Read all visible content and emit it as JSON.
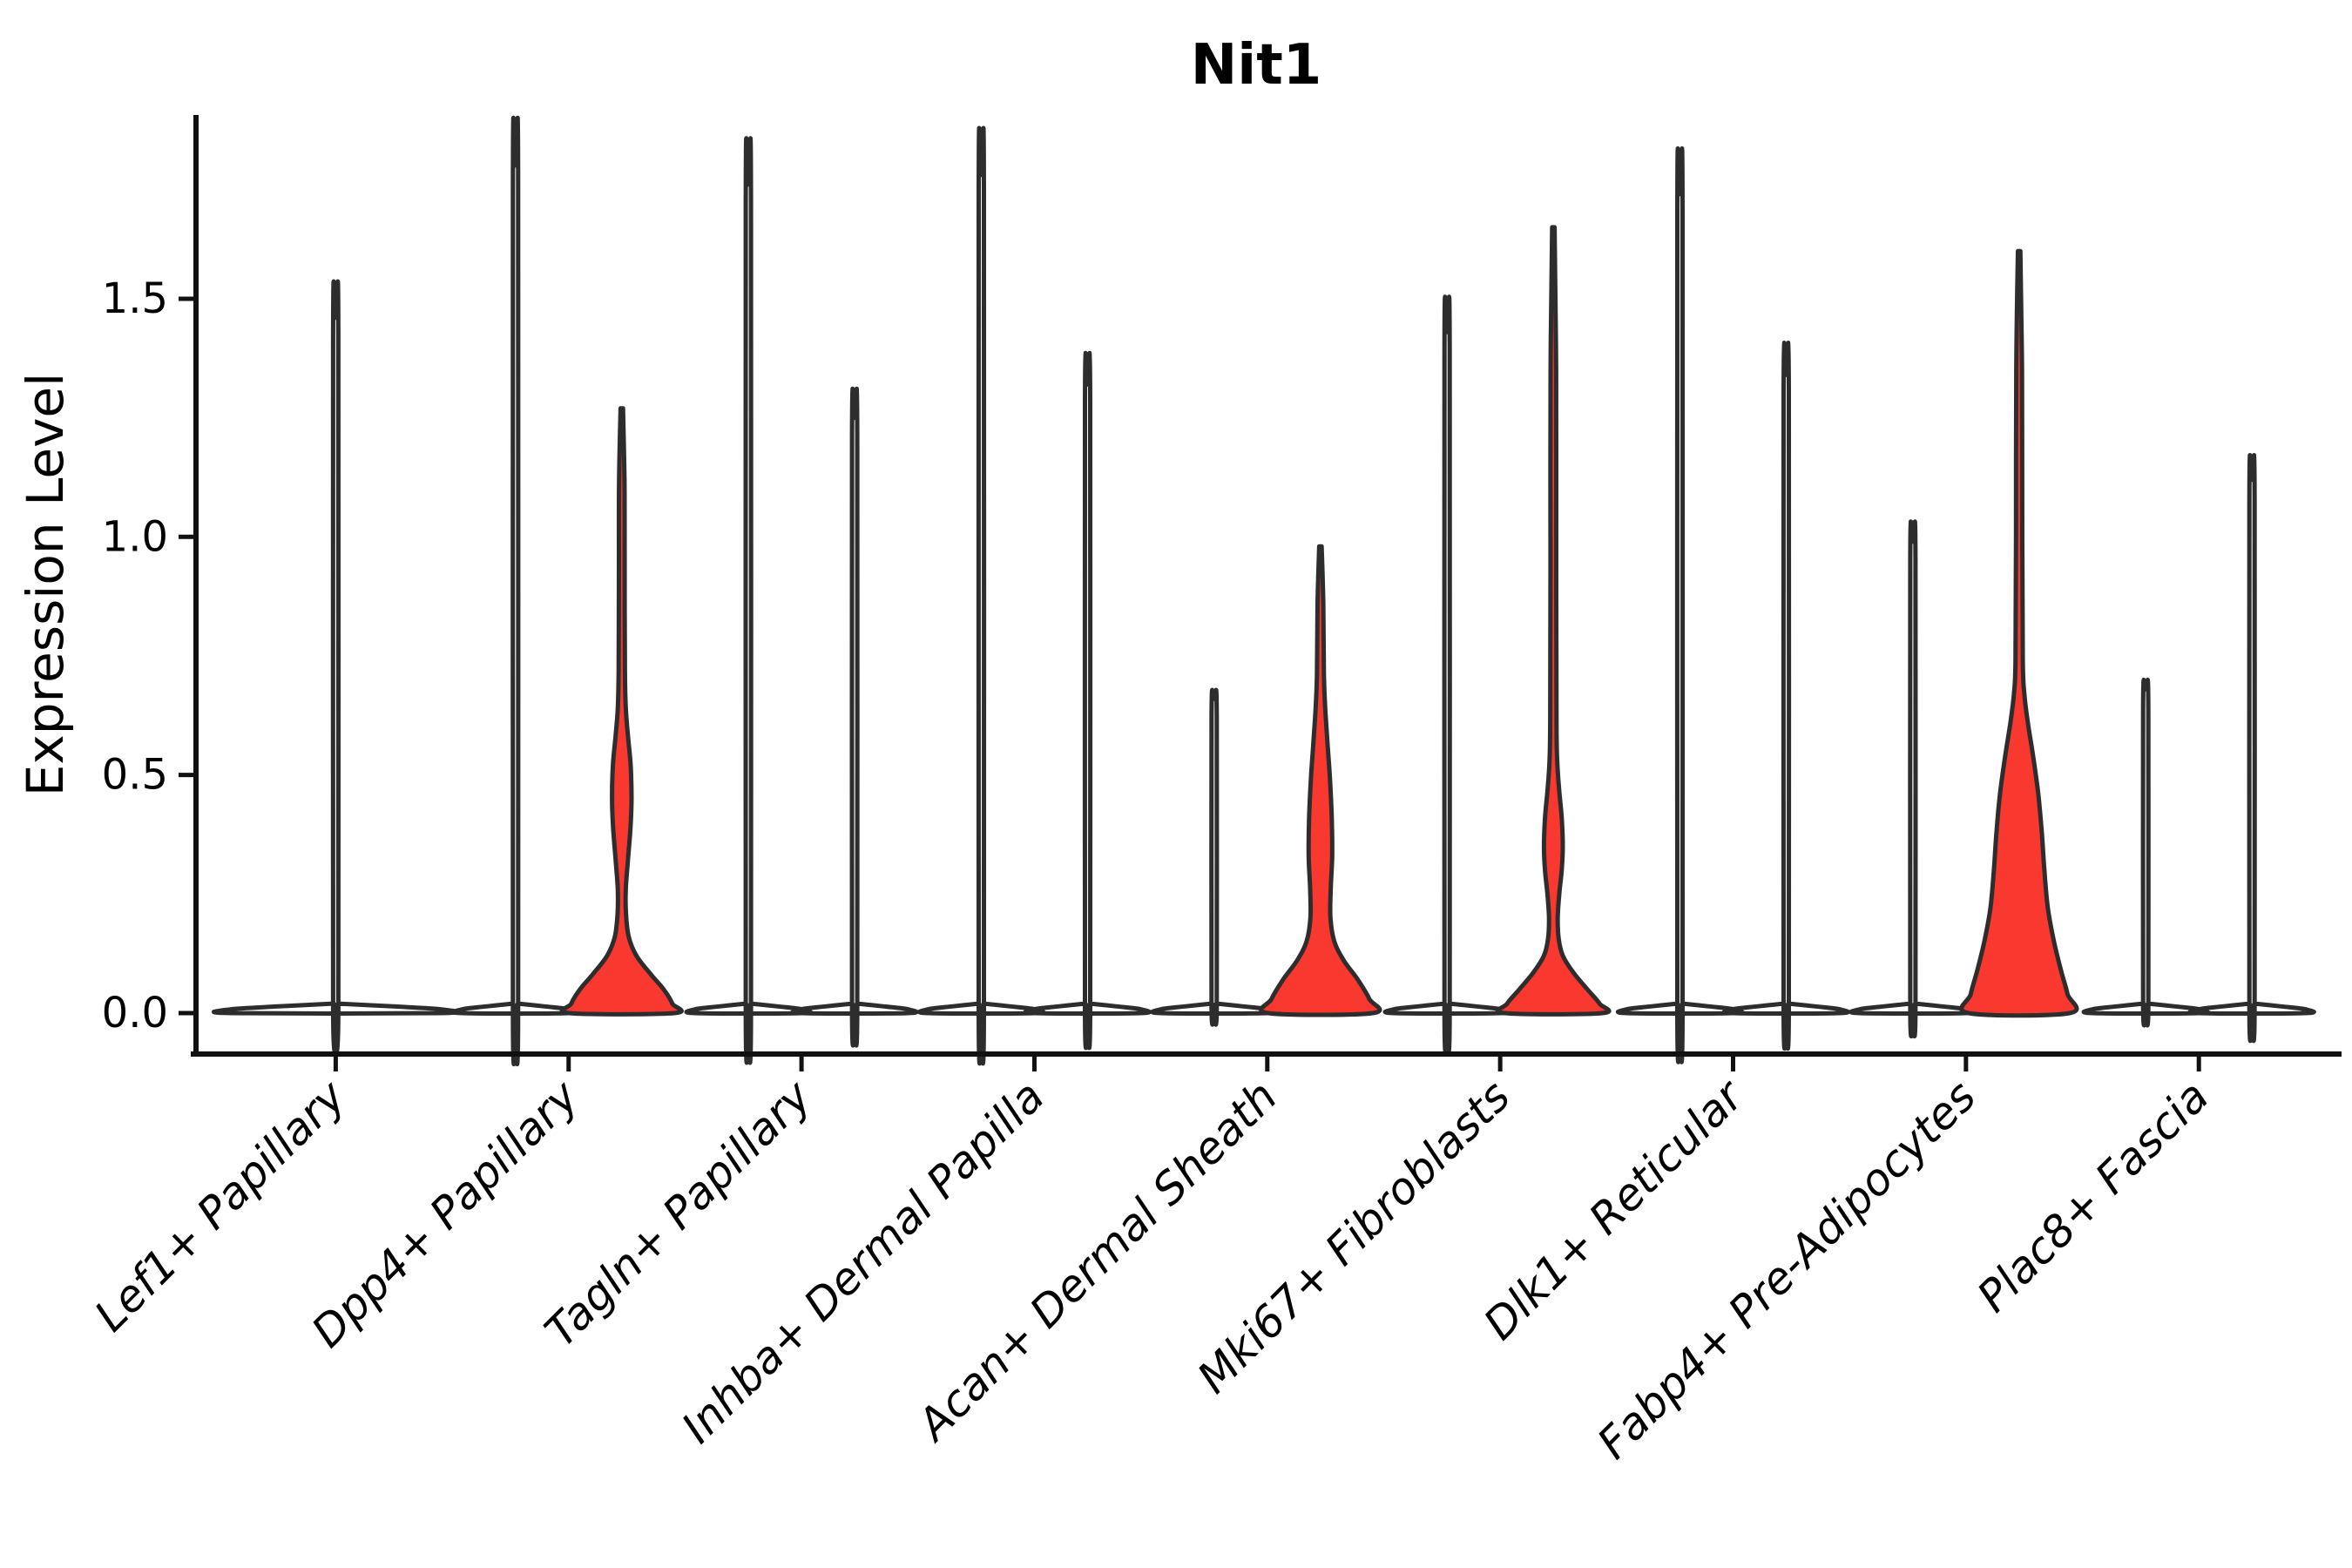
{
  "figure": {
    "background": "#ffffff"
  },
  "chart_data": {
    "type": "violin",
    "title": "Nit1",
    "ylabel": "Expression Level",
    "xlabel": "",
    "ylim": [
      -0.09,
      1.88
    ],
    "grid": false,
    "legend": "none",
    "accent_fill_color": "#f93830",
    "outline_color": "#2d2d2d",
    "axis_color": "#111111",
    "yticks": [
      {
        "label": "0.0",
        "value": 0.0
      },
      {
        "label": "0.5",
        "value": 0.5
      },
      {
        "label": "1.0",
        "value": 1.0
      },
      {
        "label": "1.5",
        "value": 1.5
      }
    ],
    "categories": [
      {
        "label": "Lef1+ Papillary",
        "violins": [
          {
            "offset": 0,
            "type": "spike",
            "top": 1.46,
            "base_half": 120,
            "filled": false
          }
        ]
      },
      {
        "label": "Dpp4+ Papillary",
        "violins": [
          {
            "offset": -61,
            "type": "spike",
            "top": 1.78,
            "base_half": 61,
            "filled": false
          },
          {
            "offset": 61,
            "type": "profile",
            "top": 1.27,
            "filled": true,
            "profile": [
              [
                0,
                60
              ],
              [
                0.02,
                58
              ],
              [
                0.05,
                48
              ],
              [
                0.08,
                34
              ],
              [
                0.12,
                17
              ],
              [
                0.16,
                8
              ],
              [
                0.21,
                4.8
              ],
              [
                0.26,
                4.6
              ],
              [
                0.32,
                7
              ],
              [
                0.39,
                10
              ],
              [
                0.45,
                11.2
              ],
              [
                0.52,
                10.2
              ],
              [
                0.58,
                7.2
              ],
              [
                0.64,
                4.6
              ],
              [
                0.72,
                3.6
              ],
              [
                0.95,
                3.3
              ],
              [
                1.12,
                3.1
              ],
              [
                1.27,
                1.4
              ]
            ]
          }
        ]
      },
      {
        "label": "Tagln+ Papillary",
        "violins": [
          {
            "offset": -61,
            "type": "spike",
            "top": 1.74,
            "base_half": 61,
            "filled": false
          },
          {
            "offset": 61,
            "type": "spike",
            "top": 1.25,
            "base_half": 61,
            "filled": false
          }
        ]
      },
      {
        "label": "Inhba+ Dermal Papilla",
        "violins": [
          {
            "offset": -61,
            "type": "spike",
            "top": 1.76,
            "base_half": 61,
            "filled": false
          },
          {
            "offset": 61,
            "type": "spike",
            "top": 1.32,
            "base_half": 61,
            "filled": false
          }
        ]
      },
      {
        "label": "Acan+ Dermal Sheath",
        "violins": [
          {
            "offset": -61,
            "type": "spike",
            "top": 0.66,
            "base_half": 61,
            "filled": false
          },
          {
            "offset": 61,
            "type": "profile",
            "top": 0.98,
            "filled": true,
            "profile": [
              [
                0,
                60
              ],
              [
                0.03,
                56
              ],
              [
                0.07,
                43
              ],
              [
                0.11,
                27
              ],
              [
                0.15,
                16
              ],
              [
                0.2,
                11.5
              ],
              [
                0.26,
                11.8
              ],
              [
                0.33,
                13.5
              ],
              [
                0.41,
                13
              ],
              [
                0.49,
                11
              ],
              [
                0.57,
                8
              ],
              [
                0.64,
                5.5
              ],
              [
                0.71,
                4
              ],
              [
                0.86,
                3.3
              ],
              [
                0.98,
                1.4
              ]
            ]
          }
        ]
      },
      {
        "label": "Mki67+ Fibroblasts",
        "violins": [
          {
            "offset": -61,
            "type": "spike",
            "top": 1.43,
            "base_half": 61,
            "filled": false
          },
          {
            "offset": 61,
            "type": "profile",
            "top": 1.65,
            "filled": true,
            "profile": [
              [
                0,
                56
              ],
              [
                0.02,
                53
              ],
              [
                0.05,
                39
              ],
              [
                0.085,
                23
              ],
              [
                0.12,
                11
              ],
              [
                0.155,
                6.2
              ],
              [
                0.2,
                5
              ],
              [
                0.25,
                6.8
              ],
              [
                0.3,
                9.6
              ],
              [
                0.35,
                10.8
              ],
              [
                0.41,
                9.6
              ],
              [
                0.47,
                6.6
              ],
              [
                0.53,
                4.4
              ],
              [
                0.62,
                3.6
              ],
              [
                0.95,
                3.3
              ],
              [
                1.35,
                3.2
              ],
              [
                1.65,
                1.4
              ]
            ]
          }
        ]
      },
      {
        "label": "Dlk1+ Reticular",
        "violins": [
          {
            "offset": -61,
            "type": "spike",
            "top": 1.72,
            "base_half": 61,
            "filled": false
          },
          {
            "offset": 61,
            "type": "spike",
            "top": 1.34,
            "base_half": 61,
            "filled": false
          }
        ]
      },
      {
        "label": "Fabp4+ Pre-Adipocytes",
        "violins": [
          {
            "offset": -61,
            "type": "spike",
            "top": 0.99,
            "base_half": 61,
            "filled": false
          },
          {
            "offset": 61,
            "type": "profile",
            "top": 1.6,
            "filled": true,
            "profile": [
              [
                0,
                58
              ],
              [
                0.04,
                55.5
              ],
              [
                0.09,
                48
              ],
              [
                0.15,
                40
              ],
              [
                0.22,
                33
              ],
              [
                0.3,
                29
              ],
              [
                0.38,
                26
              ],
              [
                0.46,
                22
              ],
              [
                0.54,
                16
              ],
              [
                0.61,
                10
              ],
              [
                0.67,
                6
              ],
              [
                0.74,
                4.2
              ],
              [
                1.0,
                3.6
              ],
              [
                1.35,
                3.3
              ],
              [
                1.6,
                1.4
              ]
            ]
          }
        ]
      },
      {
        "label": "Plac8+ Fascia",
        "violins": [
          {
            "offset": -61,
            "type": "spike",
            "top": 0.68,
            "base_half": 61,
            "filled": false
          },
          {
            "offset": 61,
            "type": "spike",
            "top": 1.12,
            "base_half": 61,
            "filled": false
          }
        ]
      }
    ]
  }
}
